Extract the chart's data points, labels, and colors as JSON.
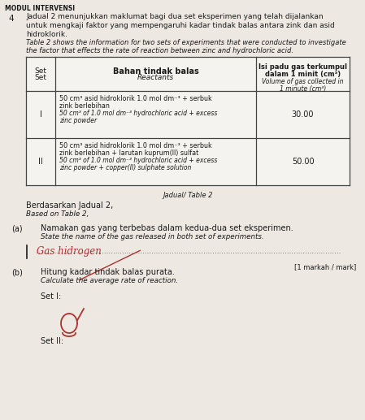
{
  "bg_color": "#ede9e2",
  "title_number": "4",
  "intro_malay_1": "Jadual 2 menunjukkan maklumat bagi dua set eksperimen yang telah dijalankan",
  "intro_malay_2": "untuk mengkaji faktor yang mempengaruhi kadar tindak balas antara zink dan asid",
  "intro_malay_3": "hidroklorik.",
  "intro_eng_1": "Table 2 shows the information for two sets of experiments that were conducted to investigate",
  "intro_eng_2": "the factor that effects the rate of reaction between zinc and hydrochloric acid.",
  "col1_h1": "Set",
  "col1_h2": "Set",
  "col2_h1": "Bahan tindak balas",
  "col2_h2": "Reactants",
  "col3_h1": "Isi padu gas terkumpul",
  "col3_h2": "dalam 1 minit (cm³)",
  "col3_h3": "Volume of gas collected in",
  "col3_h4": "1 minute (cm³)",
  "row1_set": "I",
  "row1_r1": "50 cm³ asid hidroklorik 1.0 mol dm⁻³ + serbuk",
  "row1_r2": "zink berlebihan",
  "row1_r3": "50 cm³ of 1.0 mol dm⁻³ hydrochloric acid + excess",
  "row1_r4": "zinc powder",
  "row1_vol": "30.00",
  "row2_set": "II",
  "row2_r1": "50 cm³ asid hidroklorik 1.0 mol dm⁻³ + serbuk",
  "row2_r2": "zink berlebihan + larutan kuprum(II) sulfat",
  "row2_r3": "50 cm³ of 1.0 mol dm⁻³ hydrochloric acid + excess",
  "row2_r4": "zinc powder + copper(II) sulphate solution",
  "row2_vol": "50.00",
  "table_caption": "Jadual/ Table 2",
  "berd_malay": "Berdasarkan Jadual 2,",
  "berd_eng": "Based on Table 2,",
  "qa_label": "(a)",
  "qa_malay": "Namakan gas yang terbebas dalam kedua-dua set eksperimen.",
  "qa_eng": "State the name of the gas released in both set of experiments.",
  "qa_answer": "Gas hidrogen",
  "qa_mark": "[1 markah / mark]",
  "qb_label": "(b)",
  "qb_malay": "Hitung kadar tindak balas purata.",
  "qb_eng": "Calculate the average rate of reaction.",
  "set1_label": "Set I:",
  "set2_label": "Set II:",
  "modul_header": "MODUL INTERVENSI",
  "handwriting_color": "#b03030",
  "text_color": "#1a1a1a",
  "border_color": "#444444",
  "white": "#f5f3ef"
}
